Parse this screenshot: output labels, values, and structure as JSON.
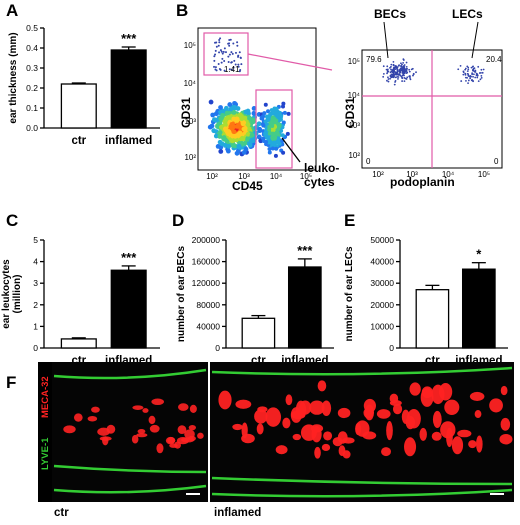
{
  "panel_letters": {
    "A": "A",
    "B": "B",
    "C": "C",
    "D": "D",
    "E": "E",
    "F": "F"
  },
  "flow": {
    "plot1": {
      "ylabel": "CD31",
      "xlabel": "CD45",
      "gate_value": "1.41",
      "xticks": [
        "10²",
        "10³",
        "10⁴",
        "10⁵"
      ],
      "yticks": [
        "10²",
        "10³",
        "10⁴",
        "10⁵"
      ],
      "annotation": "leuko-\ncytes"
    },
    "plot2": {
      "ylabel": "CD31",
      "xlabel": "podoplanin",
      "left_label": "BECs",
      "right_label": "LECs",
      "q_ul": "79.6",
      "q_ur": "20.4",
      "q_ll": "0",
      "q_lr": "0",
      "xticks": [
        "10²",
        "10³",
        "10⁴",
        "10⁵"
      ],
      "yticks": [
        "10²",
        "10³",
        "10⁴",
        "10⁵"
      ]
    },
    "colors": {
      "gate": "#e15ba8",
      "dots": "#3344aa"
    }
  },
  "micro": {
    "left_label": "ctr",
    "right_label": "inflamed",
    "stain_green": "LYVE-1",
    "stain_red": "MECA-32",
    "colors": {
      "green": "#33cc33",
      "red": "#ff2222"
    }
  },
  "chart_data": [
    {
      "id": "A",
      "type": "bar",
      "categories": [
        "ctr",
        "inflamed"
      ],
      "values": [
        0.22,
        0.39
      ],
      "errors": [
        0.005,
        0.015
      ],
      "ylabel": "ear thickness (mm)",
      "ylim": [
        0,
        0.5
      ],
      "yticks": [
        0.0,
        0.1,
        0.2,
        0.3,
        0.4,
        0.5
      ],
      "tick_labels": [
        "0.0",
        "0.1",
        "0.2",
        "0.3",
        "0.4",
        "0.5"
      ],
      "significance": [
        "",
        "***"
      ],
      "fills": [
        "#ffffff",
        "#000000"
      ]
    },
    {
      "id": "C",
      "type": "bar",
      "categories": [
        "ctr",
        "inflamed"
      ],
      "values": [
        0.42,
        3.6
      ],
      "errors": [
        0.05,
        0.2
      ],
      "ylabel": "ear leukocytes\n(million)",
      "ylim": [
        0,
        5
      ],
      "yticks": [
        0,
        1,
        2,
        3,
        4,
        5
      ],
      "tick_labels": [
        "0",
        "1",
        "2",
        "3",
        "4",
        "5"
      ],
      "significance": [
        "",
        "***"
      ],
      "fills": [
        "#ffffff",
        "#000000"
      ]
    },
    {
      "id": "D",
      "type": "bar",
      "categories": [
        "ctr",
        "inflamed"
      ],
      "values": [
        55000,
        150000
      ],
      "errors": [
        5000,
        15000
      ],
      "ylabel": "number of ear BECs",
      "ylim": [
        0,
        200000
      ],
      "yticks": [
        0,
        40000,
        80000,
        120000,
        160000,
        200000
      ],
      "tick_labels": [
        "0",
        "40000",
        "80000",
        "120000",
        "160000",
        "200000"
      ],
      "significance": [
        "",
        "***"
      ],
      "fills": [
        "#ffffff",
        "#000000"
      ]
    },
    {
      "id": "E",
      "type": "bar",
      "categories": [
        "ctr",
        "inflamed"
      ],
      "values": [
        27000,
        36500
      ],
      "errors": [
        2000,
        3000
      ],
      "ylabel": "number of ear LECs",
      "ylim": [
        0,
        50000
      ],
      "yticks": [
        0,
        10000,
        20000,
        30000,
        40000,
        50000
      ],
      "tick_labels": [
        "0",
        "10000",
        "20000",
        "30000",
        "40000",
        "50000"
      ],
      "significance": [
        "",
        "*"
      ],
      "fills": [
        "#ffffff",
        "#000000"
      ]
    }
  ]
}
